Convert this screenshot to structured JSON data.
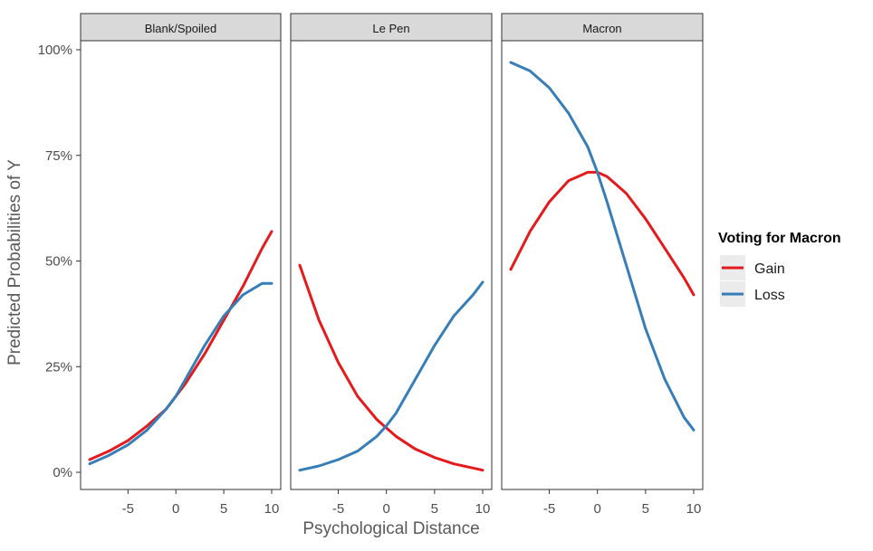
{
  "chart_data": {
    "type": "line",
    "ylabel": "Predicted Probabilities of Y",
    "xlabel": "Psychological Distance",
    "x_ticks": [
      -5,
      0,
      5,
      10
    ],
    "x_tick_labels": [
      "-5",
      "0",
      "5",
      "10"
    ],
    "xlim": [
      -9,
      10
    ],
    "y_ticks": [
      0,
      0.25,
      0.5,
      0.75,
      1.0
    ],
    "y_tick_labels": [
      "0%",
      "25%",
      "50%",
      "75%",
      "100%"
    ],
    "ylim": [
      0,
      1
    ],
    "grid": false,
    "legend": {
      "title": "Voting for Macron",
      "position": "right",
      "entries": [
        {
          "name": "Gain",
          "color": "#E41A1C"
        },
        {
          "name": "Loss",
          "color": "#377EB8"
        }
      ]
    },
    "panels": [
      {
        "title": "Blank/Spoiled",
        "series": [
          {
            "name": "Gain",
            "x": [
              -9,
              -7,
              -5,
              -3,
              -1,
              0,
              1,
              3,
              5,
              7,
              9,
              10
            ],
            "y": [
              0.03,
              0.05,
              0.075,
              0.11,
              0.15,
              0.18,
              0.21,
              0.28,
              0.36,
              0.44,
              0.53,
              0.57
            ]
          },
          {
            "name": "Loss",
            "x": [
              -9,
              -7,
              -5,
              -3,
              -1,
              0,
              1,
              3,
              5,
              7,
              9,
              10
            ],
            "y": [
              0.02,
              0.04,
              0.065,
              0.1,
              0.15,
              0.18,
              0.22,
              0.3,
              0.37,
              0.42,
              0.447,
              0.447
            ]
          }
        ]
      },
      {
        "title": "Le Pen",
        "series": [
          {
            "name": "Gain",
            "x": [
              -9,
              -7,
              -5,
              -3,
              -1,
              0,
              1,
              3,
              5,
              7,
              9,
              10
            ],
            "y": [
              0.49,
              0.36,
              0.26,
              0.18,
              0.125,
              0.105,
              0.085,
              0.055,
              0.035,
              0.02,
              0.01,
              0.005
            ]
          },
          {
            "name": "Loss",
            "x": [
              -9,
              -7,
              -5,
              -3,
              -1,
              0,
              1,
              3,
              5,
              7,
              9,
              10
            ],
            "y": [
              0.005,
              0.015,
              0.03,
              0.05,
              0.085,
              0.11,
              0.14,
              0.22,
              0.3,
              0.37,
              0.42,
              0.45
            ]
          }
        ]
      },
      {
        "title": "Macron",
        "series": [
          {
            "name": "Gain",
            "x": [
              -9,
              -7,
              -5,
              -3,
              -1,
              0,
              1,
              3,
              5,
              7,
              9,
              10
            ],
            "y": [
              0.48,
              0.57,
              0.64,
              0.69,
              0.71,
              0.71,
              0.7,
              0.66,
              0.6,
              0.53,
              0.46,
              0.42
            ]
          },
          {
            "name": "Loss",
            "x": [
              -9,
              -7,
              -5,
              -3,
              -1,
              0,
              1,
              3,
              5,
              7,
              9,
              10
            ],
            "y": [
              0.97,
              0.95,
              0.91,
              0.85,
              0.77,
              0.71,
              0.64,
              0.49,
              0.34,
              0.22,
              0.13,
              0.1
            ]
          }
        ]
      }
    ]
  }
}
